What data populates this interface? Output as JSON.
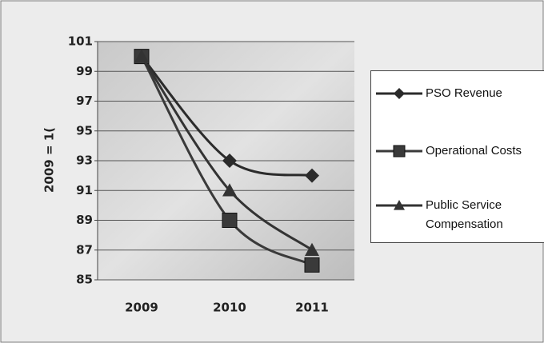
{
  "chart_data": {
    "type": "line",
    "categories": [
      "2009",
      "2010",
      "2011"
    ],
    "y_label": "2009 = 1(",
    "ylim": [
      85,
      101
    ],
    "yticks": [
      85,
      87,
      89,
      91,
      93,
      95,
      97,
      99,
      101
    ],
    "grid": true,
    "legend": "right",
    "series": [
      {
        "name": "PSO Revenue",
        "color": "#2b2b2b",
        "marker": "diamond",
        "values": [
          100,
          93,
          92
        ]
      },
      {
        "name": "Operational Costs",
        "color": "#3a3a3a",
        "marker": "square",
        "values": [
          100,
          89,
          86
        ]
      },
      {
        "name": "Public Service Compensation",
        "color": "#333333",
        "marker": "triangle",
        "values": [
          100,
          91,
          87
        ]
      }
    ]
  }
}
